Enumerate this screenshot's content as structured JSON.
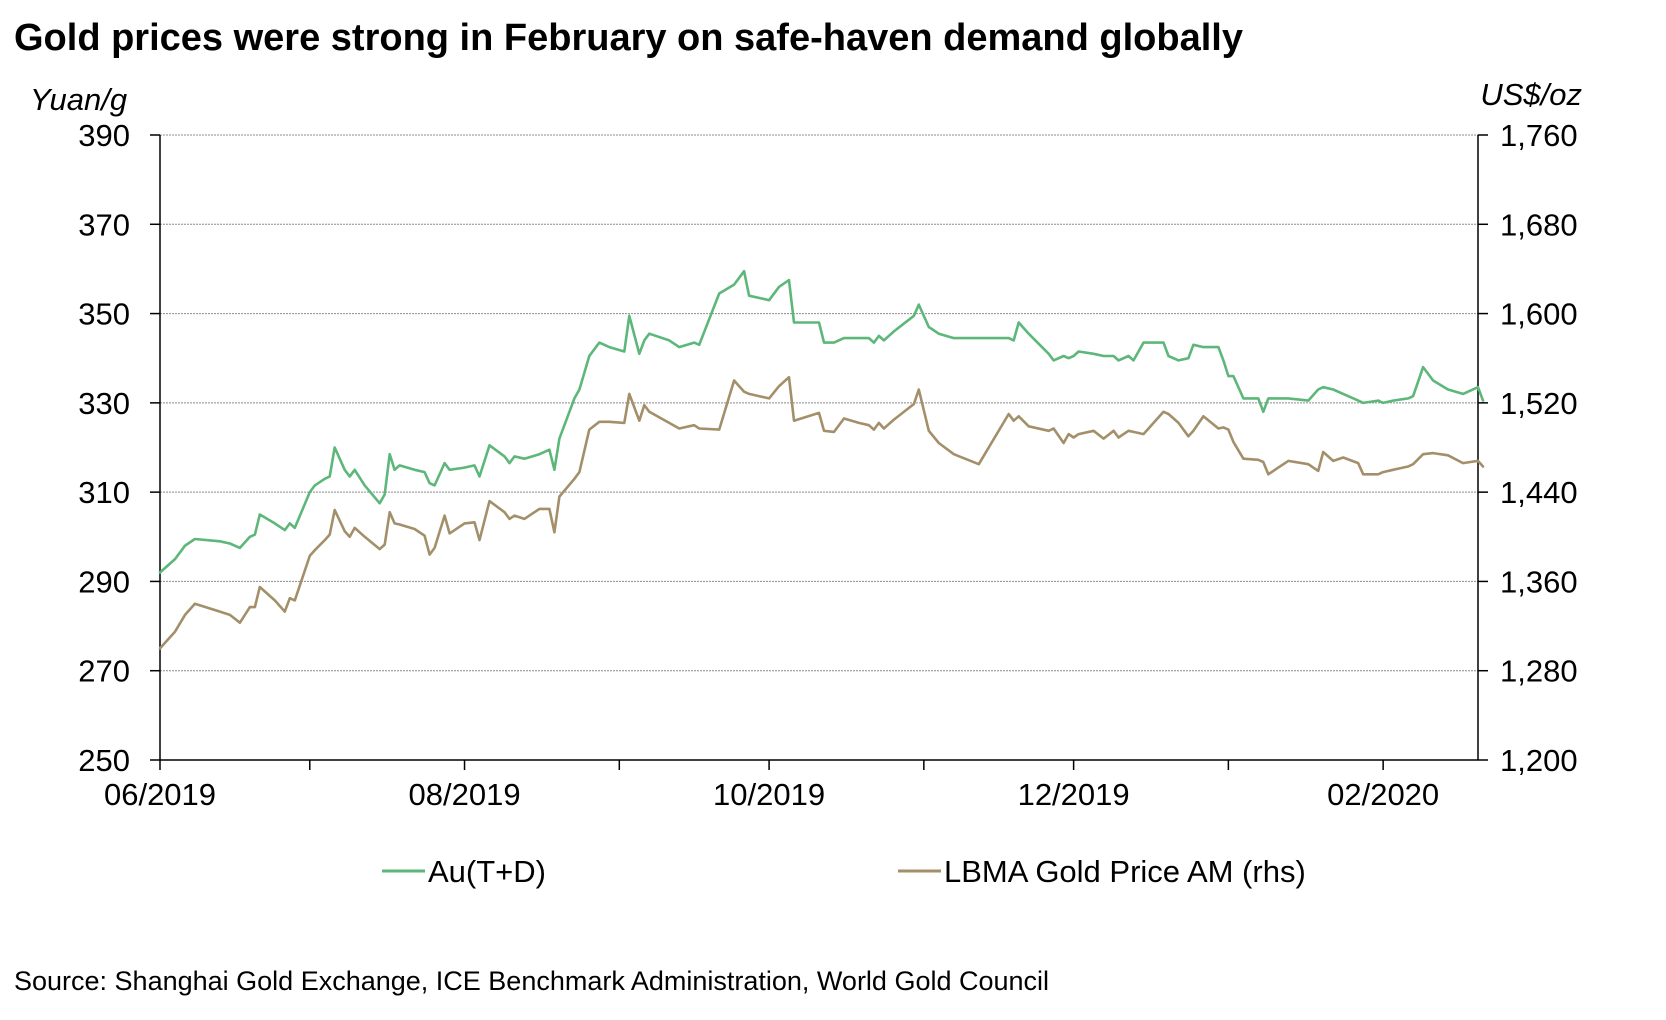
{
  "colors": {
    "series_au": "#5db77a",
    "series_lbma": "#a3906a",
    "grid": "#8c8c8c",
    "axis": "#000000"
  },
  "chart_data": {
    "type": "line",
    "title": "Gold prices were strong in February on safe-haven demand globally",
    "y_left_label": "Yuan/g",
    "y_right_label": "US$/oz",
    "ylim_left": [
      250,
      390
    ],
    "ylim_right": [
      1200,
      1760
    ],
    "y_left_ticks": [
      "390",
      "370",
      "350",
      "330",
      "310",
      "290",
      "270",
      "250"
    ],
    "y_right_ticks": [
      "1,760",
      "1,680",
      "1,600",
      "1,520",
      "1,440",
      "1,360",
      "1,280",
      "1,200"
    ],
    "x_range": [
      "2019-06-01",
      "2020-02-20"
    ],
    "x_ticks": [
      {
        "label": "06/2019",
        "date": "2019-06-01"
      },
      {
        "label": "08/2019",
        "date": "2019-08-01"
      },
      {
        "label": "10/2019",
        "date": "2019-10-01"
      },
      {
        "label": "12/2019",
        "date": "2019-12-01"
      },
      {
        "label": "02/2020",
        "date": "2020-02-01"
      }
    ],
    "grid": true,
    "legend_position": "bottom",
    "series": [
      {
        "name": "Au(T+D)",
        "axis": "left",
        "points": [
          [
            "2019-06-01",
            292
          ],
          [
            "2019-06-04",
            295
          ],
          [
            "2019-06-06",
            298
          ],
          [
            "2019-06-08",
            299.5
          ],
          [
            "2019-06-13",
            299
          ],
          [
            "2019-06-15",
            298.5
          ],
          [
            "2019-06-17",
            297.5
          ],
          [
            "2019-06-19",
            300
          ],
          [
            "2019-06-20",
            300.5
          ],
          [
            "2019-06-21",
            305
          ],
          [
            "2019-06-24",
            303
          ],
          [
            "2019-06-26",
            301.5
          ],
          [
            "2019-06-27",
            303
          ],
          [
            "2019-06-28",
            302
          ],
          [
            "2019-07-01",
            310
          ],
          [
            "2019-07-02",
            311.5
          ],
          [
            "2019-07-04",
            313
          ],
          [
            "2019-07-05",
            313.5
          ],
          [
            "2019-07-06",
            320
          ],
          [
            "2019-07-08",
            315
          ],
          [
            "2019-07-09",
            313.5
          ],
          [
            "2019-07-10",
            315
          ],
          [
            "2019-07-12",
            311.5
          ],
          [
            "2019-07-15",
            307.5
          ],
          [
            "2019-07-16",
            309.5
          ],
          [
            "2019-07-17",
            318.5
          ],
          [
            "2019-07-18",
            315
          ],
          [
            "2019-07-19",
            316
          ],
          [
            "2019-07-22",
            315
          ],
          [
            "2019-07-24",
            314.5
          ],
          [
            "2019-07-25",
            312
          ],
          [
            "2019-07-26",
            311.5
          ],
          [
            "2019-07-28",
            316.5
          ],
          [
            "2019-07-29",
            315
          ],
          [
            "2019-08-01",
            315.5
          ],
          [
            "2019-08-03",
            316
          ],
          [
            "2019-08-04",
            313.5
          ],
          [
            "2019-08-06",
            320.5
          ],
          [
            "2019-08-09",
            318
          ],
          [
            "2019-08-10",
            316.5
          ],
          [
            "2019-08-11",
            318
          ],
          [
            "2019-08-13",
            317.5
          ],
          [
            "2019-08-16",
            318.5
          ],
          [
            "2019-08-18",
            319.5
          ],
          [
            "2019-08-19",
            315
          ],
          [
            "2019-08-20",
            322
          ],
          [
            "2019-08-23",
            331
          ],
          [
            "2019-08-24",
            333
          ],
          [
            "2019-08-26",
            340.5
          ],
          [
            "2019-08-28",
            343.5
          ],
          [
            "2019-08-30",
            342.5
          ],
          [
            "2019-09-02",
            341.5
          ],
          [
            "2019-09-03",
            349.5
          ],
          [
            "2019-09-05",
            341
          ],
          [
            "2019-09-06",
            344
          ],
          [
            "2019-09-07",
            345.5
          ],
          [
            "2019-09-11",
            344
          ],
          [
            "2019-09-13",
            342.5
          ],
          [
            "2019-09-16",
            343.5
          ],
          [
            "2019-09-17",
            343
          ],
          [
            "2019-09-21",
            354.5
          ],
          [
            "2019-09-24",
            356.5
          ],
          [
            "2019-09-26",
            359.5
          ],
          [
            "2019-09-27",
            354
          ],
          [
            "2019-10-01",
            353
          ],
          [
            "2019-10-03",
            356
          ],
          [
            "2019-10-05",
            357.5
          ],
          [
            "2019-10-06",
            348
          ],
          [
            "2019-10-11",
            348
          ],
          [
            "2019-10-12",
            343.5
          ],
          [
            "2019-10-14",
            343.5
          ],
          [
            "2019-10-16",
            344.5
          ],
          [
            "2019-10-19",
            344.5
          ],
          [
            "2019-10-21",
            344.5
          ],
          [
            "2019-10-22",
            343.5
          ],
          [
            "2019-10-23",
            345
          ],
          [
            "2019-10-24",
            344
          ],
          [
            "2019-10-26",
            346
          ],
          [
            "2019-10-30",
            349.5
          ],
          [
            "2019-10-31",
            352
          ],
          [
            "2019-11-02",
            347
          ],
          [
            "2019-11-04",
            345.5
          ],
          [
            "2019-11-07",
            344.5
          ],
          [
            "2019-11-12",
            344.5
          ],
          [
            "2019-11-18",
            344.5
          ],
          [
            "2019-11-19",
            344
          ],
          [
            "2019-11-20",
            348
          ],
          [
            "2019-11-22",
            345.5
          ],
          [
            "2019-11-26",
            341
          ],
          [
            "2019-11-27",
            339.5
          ],
          [
            "2019-11-29",
            340.5
          ],
          [
            "2019-11-30",
            340
          ],
          [
            "2019-12-01",
            340.5
          ],
          [
            "2019-12-02",
            341.5
          ],
          [
            "2019-12-05",
            341
          ],
          [
            "2019-12-07",
            340.5
          ],
          [
            "2019-12-09",
            340.5
          ],
          [
            "2019-12-10",
            339.5
          ],
          [
            "2019-12-12",
            340.5
          ],
          [
            "2019-12-13",
            339.5
          ],
          [
            "2019-12-15",
            343.5
          ],
          [
            "2019-12-19",
            343.5
          ],
          [
            "2019-12-20",
            340.5
          ],
          [
            "2019-12-22",
            339.5
          ],
          [
            "2019-12-24",
            340
          ],
          [
            "2019-12-25",
            343
          ],
          [
            "2019-12-27",
            342.5
          ],
          [
            "2019-12-30",
            342.5
          ],
          [
            "2019-12-31",
            339.5
          ],
          [
            "2020-01-01",
            336
          ],
          [
            "2020-01-02",
            336
          ],
          [
            "2020-01-04",
            331
          ],
          [
            "2020-01-07",
            331
          ],
          [
            "2020-01-08",
            328
          ],
          [
            "2020-01-09",
            331
          ],
          [
            "2020-01-11",
            331
          ],
          [
            "2020-01-13",
            331
          ],
          [
            "2020-01-17",
            330.5
          ],
          [
            "2020-01-19",
            333
          ],
          [
            "2020-01-20",
            333.5
          ],
          [
            "2020-01-22",
            333
          ],
          [
            "2020-01-24",
            332
          ],
          [
            "2020-01-27",
            330.5
          ],
          [
            "2020-01-28",
            330
          ],
          [
            "2020-01-31",
            330.5
          ],
          [
            "2020-02-01",
            330
          ],
          [
            "2020-02-03",
            330.5
          ],
          [
            "2020-02-06",
            331
          ],
          [
            "2020-02-07",
            331.5
          ],
          [
            "2020-02-09",
            338
          ],
          [
            "2020-02-11",
            335
          ],
          [
            "2020-02-14",
            333
          ],
          [
            "2020-02-17",
            332
          ],
          [
            "2020-02-20",
            333.5
          ],
          [
            "2020-02-21",
            330.5
          ]
        ]
      },
      {
        "name": "LBMA Gold Price AM (rhs)",
        "axis": "right",
        "points": [
          [
            "2019-06-01",
            1300
          ],
          [
            "2019-06-04",
            1315
          ],
          [
            "2019-06-06",
            1330
          ],
          [
            "2019-06-08",
            1340
          ],
          [
            "2019-06-13",
            1333
          ],
          [
            "2019-06-15",
            1330
          ],
          [
            "2019-06-17",
            1323
          ],
          [
            "2019-06-19",
            1337
          ],
          [
            "2019-06-20",
            1337
          ],
          [
            "2019-06-21",
            1355
          ],
          [
            "2019-06-24",
            1343
          ],
          [
            "2019-06-26",
            1333
          ],
          [
            "2019-06-27",
            1345
          ],
          [
            "2019-06-28",
            1343
          ],
          [
            "2019-07-01",
            1383
          ],
          [
            "2019-07-02",
            1388
          ],
          [
            "2019-07-04",
            1397
          ],
          [
            "2019-07-05",
            1402
          ],
          [
            "2019-07-06",
            1424
          ],
          [
            "2019-07-08",
            1405
          ],
          [
            "2019-07-09",
            1400
          ],
          [
            "2019-07-10",
            1408
          ],
          [
            "2019-07-12",
            1400
          ],
          [
            "2019-07-15",
            1389
          ],
          [
            "2019-07-16",
            1393
          ],
          [
            "2019-07-17",
            1422
          ],
          [
            "2019-07-18",
            1412
          ],
          [
            "2019-07-19",
            1411
          ],
          [
            "2019-07-22",
            1407
          ],
          [
            "2019-07-24",
            1401
          ],
          [
            "2019-07-25",
            1384
          ],
          [
            "2019-07-26",
            1390
          ],
          [
            "2019-07-28",
            1419
          ],
          [
            "2019-07-29",
            1403
          ],
          [
            "2019-08-01",
            1412
          ],
          [
            "2019-08-03",
            1413
          ],
          [
            "2019-08-04",
            1397
          ],
          [
            "2019-08-06",
            1432
          ],
          [
            "2019-08-09",
            1422
          ],
          [
            "2019-08-10",
            1416
          ],
          [
            "2019-08-11",
            1419
          ],
          [
            "2019-08-13",
            1416
          ],
          [
            "2019-08-16",
            1425
          ],
          [
            "2019-08-18",
            1425
          ],
          [
            "2019-08-19",
            1404
          ],
          [
            "2019-08-20",
            1436
          ],
          [
            "2019-08-23",
            1452
          ],
          [
            "2019-08-24",
            1458
          ],
          [
            "2019-08-26",
            1496
          ],
          [
            "2019-08-28",
            1503
          ],
          [
            "2019-08-30",
            1503
          ],
          [
            "2019-09-02",
            1502
          ],
          [
            "2019-09-03",
            1528
          ],
          [
            "2019-09-05",
            1504
          ],
          [
            "2019-09-06",
            1518
          ],
          [
            "2019-09-07",
            1512
          ],
          [
            "2019-09-11",
            1502
          ],
          [
            "2019-09-13",
            1497
          ],
          [
            "2019-09-16",
            1500
          ],
          [
            "2019-09-17",
            1497
          ],
          [
            "2019-09-21",
            1496
          ],
          [
            "2019-09-24",
            1540
          ],
          [
            "2019-09-26",
            1530
          ],
          [
            "2019-09-27",
            1528
          ],
          [
            "2019-10-01",
            1524
          ],
          [
            "2019-10-03",
            1535
          ],
          [
            "2019-10-05",
            1543
          ],
          [
            "2019-10-06",
            1504
          ],
          [
            "2019-10-11",
            1511
          ],
          [
            "2019-10-12",
            1495
          ],
          [
            "2019-10-14",
            1494
          ],
          [
            "2019-10-16",
            1506
          ],
          [
            "2019-10-19",
            1502
          ],
          [
            "2019-10-21",
            1500
          ],
          [
            "2019-10-22",
            1496
          ],
          [
            "2019-10-23",
            1502
          ],
          [
            "2019-10-24",
            1497
          ],
          [
            "2019-10-26",
            1505
          ],
          [
            "2019-10-30",
            1519
          ],
          [
            "2019-10-31",
            1532
          ],
          [
            "2019-11-02",
            1495
          ],
          [
            "2019-11-04",
            1484
          ],
          [
            "2019-11-07",
            1474
          ],
          [
            "2019-11-12",
            1465
          ],
          [
            "2019-11-18",
            1510
          ],
          [
            "2019-11-19",
            1504
          ],
          [
            "2019-11-20",
            1508
          ],
          [
            "2019-11-22",
            1499
          ],
          [
            "2019-11-26",
            1495
          ],
          [
            "2019-11-27",
            1497
          ],
          [
            "2019-11-29",
            1484
          ],
          [
            "2019-11-30",
            1492
          ],
          [
            "2019-12-01",
            1489
          ],
          [
            "2019-12-02",
            1492
          ],
          [
            "2019-12-05",
            1495
          ],
          [
            "2019-12-07",
            1488
          ],
          [
            "2019-12-09",
            1495
          ],
          [
            "2019-12-10",
            1489
          ],
          [
            "2019-12-12",
            1495
          ],
          [
            "2019-12-13",
            1494
          ],
          [
            "2019-12-15",
            1492
          ],
          [
            "2019-12-19",
            1512
          ],
          [
            "2019-12-20",
            1510
          ],
          [
            "2019-12-22",
            1502
          ],
          [
            "2019-12-24",
            1490
          ],
          [
            "2019-12-25",
            1495
          ],
          [
            "2019-12-27",
            1508
          ],
          [
            "2019-12-30",
            1497
          ],
          [
            "2019-12-31",
            1498
          ],
          [
            "2020-01-01",
            1496
          ],
          [
            "2020-01-02",
            1485
          ],
          [
            "2020-01-04",
            1470
          ],
          [
            "2020-01-07",
            1469
          ],
          [
            "2020-01-08",
            1467
          ],
          [
            "2020-01-09",
            1456
          ],
          [
            "2020-01-11",
            1462
          ],
          [
            "2020-01-13",
            1468
          ],
          [
            "2020-01-17",
            1465
          ],
          [
            "2020-01-19",
            1459
          ],
          [
            "2020-01-20",
            1476
          ],
          [
            "2020-01-22",
            1468
          ],
          [
            "2020-01-24",
            1471
          ],
          [
            "2020-01-27",
            1466
          ],
          [
            "2020-01-28",
            1456
          ],
          [
            "2020-01-31",
            1456
          ],
          [
            "2020-02-01",
            1458
          ],
          [
            "2020-02-03",
            1460
          ],
          [
            "2020-02-06",
            1463
          ],
          [
            "2020-02-07",
            1465
          ],
          [
            "2020-02-09",
            1474
          ],
          [
            "2020-02-11",
            1475
          ],
          [
            "2020-02-14",
            1473
          ],
          [
            "2020-02-17",
            1466
          ],
          [
            "2020-02-20",
            1468
          ],
          [
            "2020-02-21",
            1463
          ]
        ]
      }
    ]
  },
  "source_text": "Source: Shanghai Gold Exchange, ICE Benchmark Administration, World Gold Council"
}
